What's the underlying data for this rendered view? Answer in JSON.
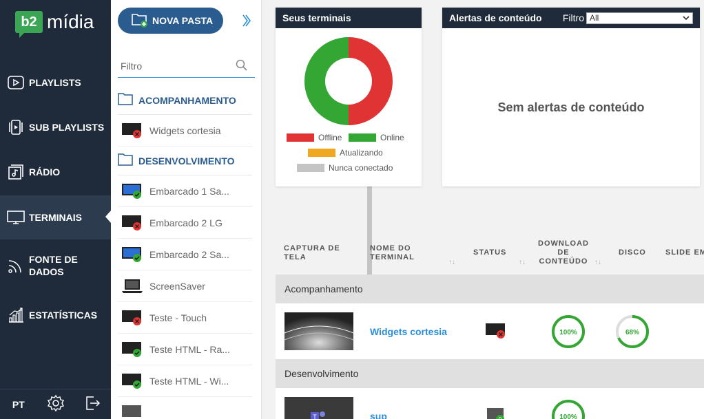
{
  "app": {
    "brand_mark": "b2",
    "brand_name": "mídia"
  },
  "nav": {
    "items": [
      {
        "label": "PLAYLISTS",
        "icon": "play-icon"
      },
      {
        "label": "SUB PLAYLISTS",
        "icon": "sub-playlist-icon"
      },
      {
        "label": "RÁDIO",
        "icon": "radio-icon"
      },
      {
        "label": "TERMINAIS",
        "icon": "monitor-icon",
        "active": true
      },
      {
        "label": "FONTE DE DADOS",
        "icon": "data-source-icon"
      },
      {
        "label": "ESTATÍSTICAS",
        "icon": "stats-icon"
      }
    ],
    "language": "PT"
  },
  "panel": {
    "new_folder_label": "NOVA PASTA",
    "filter_placeholder": "Filtro",
    "folders": [
      {
        "name": "ACOMPANHAMENTO",
        "terminals": [
          {
            "name": "Widgets cortesia",
            "status": "offline"
          }
        ]
      },
      {
        "name": "DESENVOLVIMENTO",
        "terminals": [
          {
            "name": "Embarcado 1 Sa...",
            "status": "online-blue"
          },
          {
            "name": "Embarcado 2 LG",
            "status": "offline"
          },
          {
            "name": "Embarcado 2 Sa...",
            "status": "online-blue"
          },
          {
            "name": "ScreenSaver",
            "status": "laptop"
          },
          {
            "name": "Teste - Touch",
            "status": "offline"
          },
          {
            "name": "Teste HTML - Ra...",
            "status": "online"
          },
          {
            "name": "Teste HTML - Wi...",
            "status": "online"
          }
        ]
      }
    ]
  },
  "terminals_card": {
    "title": "Seus terminais",
    "legend": {
      "offline": "Offline",
      "online": "Online",
      "updating": "Atualizando",
      "never": "Nunca conectado"
    },
    "colors": {
      "offline": "#e03434",
      "online": "#34a634",
      "updating": "#f0a820",
      "never": "#c4c4c4"
    },
    "distribution": {
      "offline": 50,
      "online": 50,
      "updating": 0,
      "never": 0
    }
  },
  "alerts_card": {
    "title": "Alertas de conteúdo",
    "filter_label": "Filtro",
    "filter_value": "All",
    "empty_message": "Sem alertas de conteúdo"
  },
  "table": {
    "headers": {
      "capture": [
        "CAPTURA DE",
        "TELA"
      ],
      "name": [
        "NOME DO",
        "TERMINAL"
      ],
      "status": [
        "STATUS"
      ],
      "download": [
        "DOWNLOAD",
        "DE",
        "CONTEÚDO"
      ],
      "disk": [
        "DISCO"
      ],
      "slide": [
        "SLIDE EM"
      ]
    },
    "groups": [
      {
        "name": "Acompanhamento",
        "rows": [
          {
            "name": "Widgets cortesia",
            "download": "100%",
            "download_value": 100,
            "disk": "68%",
            "disk_value": 68
          }
        ]
      },
      {
        "name": "Desenvolvimento",
        "rows": [
          {
            "name": "sup",
            "download": "100%",
            "download_value": 100,
            "disk": "",
            "disk_value": 0,
            "status_badge": "0"
          }
        ]
      }
    ]
  }
}
